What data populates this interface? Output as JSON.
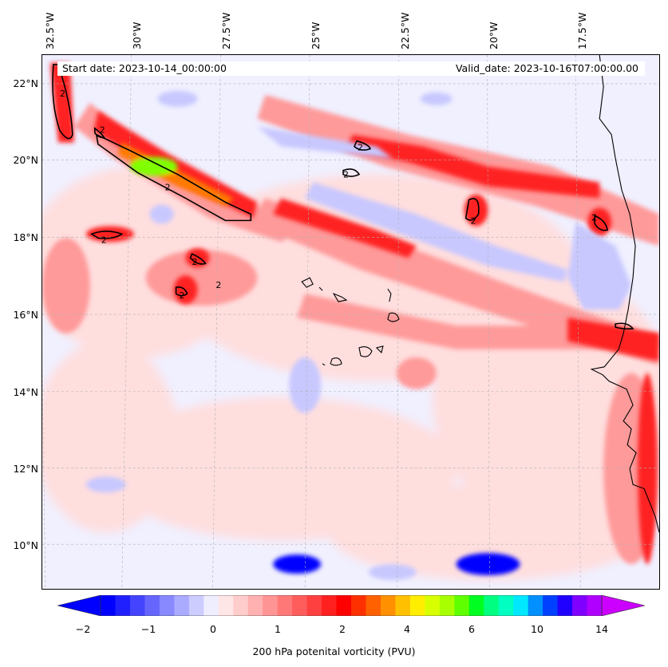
{
  "map": {
    "start_date": "Start date: 2023-10-14_00:00:00",
    "valid_date": "Valid_date: 2023-10-16T07:00:00.00",
    "lon_labels": [
      "32.5°W",
      "30°W",
      "27.5°W",
      "25°W",
      "22.5°W",
      "20°W",
      "17.5°W"
    ],
    "lat_labels": [
      "22°N",
      "20°N",
      "18°N",
      "16°N",
      "14°N",
      "12°N",
      "10°N"
    ],
    "contour_label": "2",
    "colors": {
      "strong_negative": "#0000ff",
      "weak_negative": "#c8c8ff",
      "background": "#f0f0ff",
      "weak_positive": "#ffdede",
      "moderate_positive": "#ff9a9a",
      "strong_positive": "#ff2020",
      "peak": "#80ff00",
      "coastline": "#000000"
    }
  },
  "colorbar": {
    "title": "200 hPa potenital vorticity (PVU)",
    "tick_labels": [
      "−2",
      "−1",
      "0",
      "1",
      "2",
      "4",
      "6",
      "10",
      "14"
    ],
    "colors": [
      "#0000ff",
      "#2020ff",
      "#4444ff",
      "#6666ff",
      "#8888ff",
      "#aaaaff",
      "#ccccff",
      "#eeeeff",
      "#ffe6e6",
      "#ffcccc",
      "#ffb0b0",
      "#ff9494",
      "#ff7878",
      "#ff5c5c",
      "#ff4040",
      "#ff2020",
      "#ff0000",
      "#ff3000",
      "#ff6000",
      "#ff9000",
      "#ffc000",
      "#ffee00",
      "#d8ff00",
      "#a8ff00",
      "#60ff00",
      "#00ff20",
      "#00ff80",
      "#00ffc0",
      "#00e8ff",
      "#0090ff",
      "#0040ff",
      "#2000ff",
      "#8000ff",
      "#b000ff"
    ],
    "arrow_low": "#0000ff",
    "arrow_high": "#cc00ff"
  }
}
